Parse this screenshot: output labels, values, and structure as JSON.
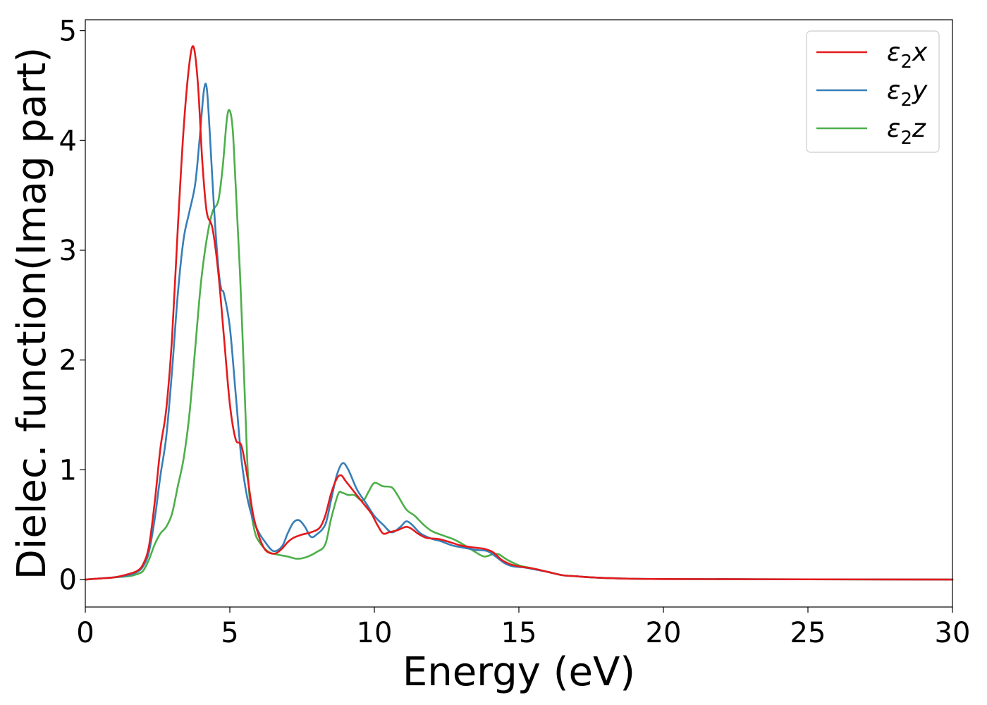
{
  "chart_data": {
    "type": "line",
    "title": "",
    "xlabel": "Energy (eV)",
    "ylabel": "Dielec. function(Imag part)",
    "xlim": [
      0,
      30
    ],
    "ylim": [
      -0.25,
      5.1
    ],
    "xticks": [
      0,
      5,
      10,
      15,
      20,
      25,
      30
    ],
    "yticks": [
      0,
      1,
      2,
      3,
      4,
      5
    ],
    "grid": false,
    "legend_position": "top-right",
    "series": [
      {
        "name": "ε₂x",
        "symbol": "ε",
        "sub": "2",
        "axis": "x",
        "color": "#e41a1c",
        "points": [
          [
            0,
            0
          ],
          [
            0.5,
            0.01
          ],
          [
            1,
            0.02
          ],
          [
            1.5,
            0.05
          ],
          [
            1.8,
            0.08
          ],
          [
            2,
            0.14
          ],
          [
            2.2,
            0.3
          ],
          [
            2.4,
            0.7
          ],
          [
            2.6,
            1.2
          ],
          [
            2.8,
            1.55
          ],
          [
            3,
            2.2
          ],
          [
            3.2,
            3.2
          ],
          [
            3.4,
            4.1
          ],
          [
            3.6,
            4.7
          ],
          [
            3.75,
            4.85
          ],
          [
            3.9,
            4.5
          ],
          [
            4.05,
            3.8
          ],
          [
            4.2,
            3.35
          ],
          [
            4.4,
            3.2
          ],
          [
            4.6,
            2.8
          ],
          [
            4.8,
            2.2
          ],
          [
            5,
            1.6
          ],
          [
            5.2,
            1.28
          ],
          [
            5.4,
            1.22
          ],
          [
            5.6,
            0.95
          ],
          [
            5.8,
            0.6
          ],
          [
            6,
            0.4
          ],
          [
            6.2,
            0.28
          ],
          [
            6.4,
            0.24
          ],
          [
            6.6,
            0.24
          ],
          [
            6.8,
            0.28
          ],
          [
            7,
            0.34
          ],
          [
            7.2,
            0.38
          ],
          [
            7.5,
            0.41
          ],
          [
            7.8,
            0.43
          ],
          [
            8.1,
            0.47
          ],
          [
            8.3,
            0.58
          ],
          [
            8.5,
            0.78
          ],
          [
            8.7,
            0.92
          ],
          [
            8.85,
            0.95
          ],
          [
            9,
            0.9
          ],
          [
            9.3,
            0.8
          ],
          [
            9.6,
            0.7
          ],
          [
            9.9,
            0.6
          ],
          [
            10.1,
            0.5
          ],
          [
            10.3,
            0.42
          ],
          [
            10.5,
            0.43
          ],
          [
            10.8,
            0.45
          ],
          [
            11.1,
            0.48
          ],
          [
            11.3,
            0.46
          ],
          [
            11.5,
            0.42
          ],
          [
            11.8,
            0.38
          ],
          [
            12.2,
            0.37
          ],
          [
            12.5,
            0.35
          ],
          [
            13,
            0.31
          ],
          [
            13.5,
            0.29
          ],
          [
            13.8,
            0.28
          ],
          [
            14.1,
            0.25
          ],
          [
            14.4,
            0.18
          ],
          [
            14.7,
            0.14
          ],
          [
            15,
            0.12
          ],
          [
            15.5,
            0.1
          ],
          [
            16,
            0.07
          ],
          [
            16.5,
            0.04
          ],
          [
            17,
            0.03
          ],
          [
            17.5,
            0.02
          ],
          [
            18.5,
            0.01
          ],
          [
            20,
            0.005
          ],
          [
            25,
            0.002
          ],
          [
            30,
            0
          ]
        ]
      },
      {
        "name": "ε₂y",
        "symbol": "ε",
        "sub": "2",
        "axis": "y",
        "color": "#377eb8",
        "points": [
          [
            0,
            0
          ],
          [
            0.5,
            0.01
          ],
          [
            1,
            0.02
          ],
          [
            1.5,
            0.04
          ],
          [
            1.8,
            0.07
          ],
          [
            2,
            0.12
          ],
          [
            2.2,
            0.25
          ],
          [
            2.4,
            0.55
          ],
          [
            2.6,
            0.95
          ],
          [
            2.8,
            1.3
          ],
          [
            3,
            1.9
          ],
          [
            3.2,
            2.6
          ],
          [
            3.4,
            3.1
          ],
          [
            3.6,
            3.35
          ],
          [
            3.8,
            3.6
          ],
          [
            3.95,
            4.0
          ],
          [
            4.1,
            4.45
          ],
          [
            4.2,
            4.48
          ],
          [
            4.3,
            4.1
          ],
          [
            4.45,
            3.4
          ],
          [
            4.6,
            2.85
          ],
          [
            4.7,
            2.65
          ],
          [
            4.8,
            2.6
          ],
          [
            5,
            2.3
          ],
          [
            5.2,
            1.7
          ],
          [
            5.4,
            1.1
          ],
          [
            5.6,
            0.75
          ],
          [
            5.8,
            0.55
          ],
          [
            6,
            0.43
          ],
          [
            6.2,
            0.35
          ],
          [
            6.5,
            0.26
          ],
          [
            6.8,
            0.3
          ],
          [
            7,
            0.42
          ],
          [
            7.2,
            0.52
          ],
          [
            7.4,
            0.54
          ],
          [
            7.6,
            0.48
          ],
          [
            7.8,
            0.39
          ],
          [
            8,
            0.41
          ],
          [
            8.3,
            0.5
          ],
          [
            8.5,
            0.72
          ],
          [
            8.7,
            0.95
          ],
          [
            8.9,
            1.06
          ],
          [
            9.1,
            1.0
          ],
          [
            9.4,
            0.82
          ],
          [
            9.7,
            0.7
          ],
          [
            10,
            0.58
          ],
          [
            10.3,
            0.5
          ],
          [
            10.6,
            0.43
          ],
          [
            10.9,
            0.48
          ],
          [
            11.1,
            0.53
          ],
          [
            11.3,
            0.5
          ],
          [
            11.6,
            0.42
          ],
          [
            12,
            0.37
          ],
          [
            12.3,
            0.35
          ],
          [
            12.7,
            0.31
          ],
          [
            13.1,
            0.29
          ],
          [
            13.5,
            0.27
          ],
          [
            13.9,
            0.26
          ],
          [
            14.2,
            0.21
          ],
          [
            14.5,
            0.15
          ],
          [
            14.8,
            0.12
          ],
          [
            15.2,
            0.11
          ],
          [
            15.6,
            0.09
          ],
          [
            16,
            0.07
          ],
          [
            16.5,
            0.04
          ],
          [
            17,
            0.03
          ],
          [
            17.5,
            0.02
          ],
          [
            18.5,
            0.01
          ],
          [
            20,
            0.005
          ],
          [
            25,
            0.002
          ],
          [
            30,
            0
          ]
        ]
      },
      {
        "name": "ε₂z",
        "symbol": "ε",
        "sub": "2",
        "axis": "z",
        "color": "#4daf4a",
        "points": [
          [
            0,
            0
          ],
          [
            0.5,
            0.01
          ],
          [
            1,
            0.02
          ],
          [
            1.5,
            0.03
          ],
          [
            1.8,
            0.05
          ],
          [
            2,
            0.08
          ],
          [
            2.2,
            0.18
          ],
          [
            2.4,
            0.32
          ],
          [
            2.6,
            0.42
          ],
          [
            2.8,
            0.48
          ],
          [
            3,
            0.6
          ],
          [
            3.2,
            0.85
          ],
          [
            3.4,
            1.1
          ],
          [
            3.6,
            1.5
          ],
          [
            3.8,
            2.1
          ],
          [
            4,
            2.7
          ],
          [
            4.2,
            3.1
          ],
          [
            4.4,
            3.35
          ],
          [
            4.6,
            3.45
          ],
          [
            4.75,
            3.75
          ],
          [
            4.9,
            4.2
          ],
          [
            5,
            4.27
          ],
          [
            5.1,
            4.1
          ],
          [
            5.2,
            3.6
          ],
          [
            5.35,
            2.8
          ],
          [
            5.5,
            1.8
          ],
          [
            5.6,
            1.1
          ],
          [
            5.7,
            0.7
          ],
          [
            5.85,
            0.45
          ],
          [
            6,
            0.35
          ],
          [
            6.3,
            0.26
          ],
          [
            6.6,
            0.23
          ],
          [
            7,
            0.21
          ],
          [
            7.3,
            0.19
          ],
          [
            7.6,
            0.2
          ],
          [
            8,
            0.25
          ],
          [
            8.3,
            0.32
          ],
          [
            8.5,
            0.55
          ],
          [
            8.75,
            0.78
          ],
          [
            8.9,
            0.79
          ],
          [
            9.1,
            0.77
          ],
          [
            9.3,
            0.77
          ],
          [
            9.6,
            0.72
          ],
          [
            9.8,
            0.8
          ],
          [
            10,
            0.88
          ],
          [
            10.3,
            0.85
          ],
          [
            10.6,
            0.84
          ],
          [
            10.8,
            0.77
          ],
          [
            11.1,
            0.64
          ],
          [
            11.4,
            0.58
          ],
          [
            11.7,
            0.5
          ],
          [
            12,
            0.44
          ],
          [
            12.4,
            0.4
          ],
          [
            12.8,
            0.36
          ],
          [
            13.2,
            0.3
          ],
          [
            13.5,
            0.25
          ],
          [
            13.8,
            0.21
          ],
          [
            14.1,
            0.23
          ],
          [
            14.3,
            0.23
          ],
          [
            14.6,
            0.18
          ],
          [
            15,
            0.13
          ],
          [
            15.5,
            0.1
          ],
          [
            16,
            0.07
          ],
          [
            16.5,
            0.04
          ],
          [
            17,
            0.03
          ],
          [
            17.5,
            0.02
          ],
          [
            18.5,
            0.01
          ],
          [
            20,
            0.005
          ],
          [
            25,
            0.002
          ],
          [
            30,
            0
          ]
        ]
      }
    ]
  }
}
